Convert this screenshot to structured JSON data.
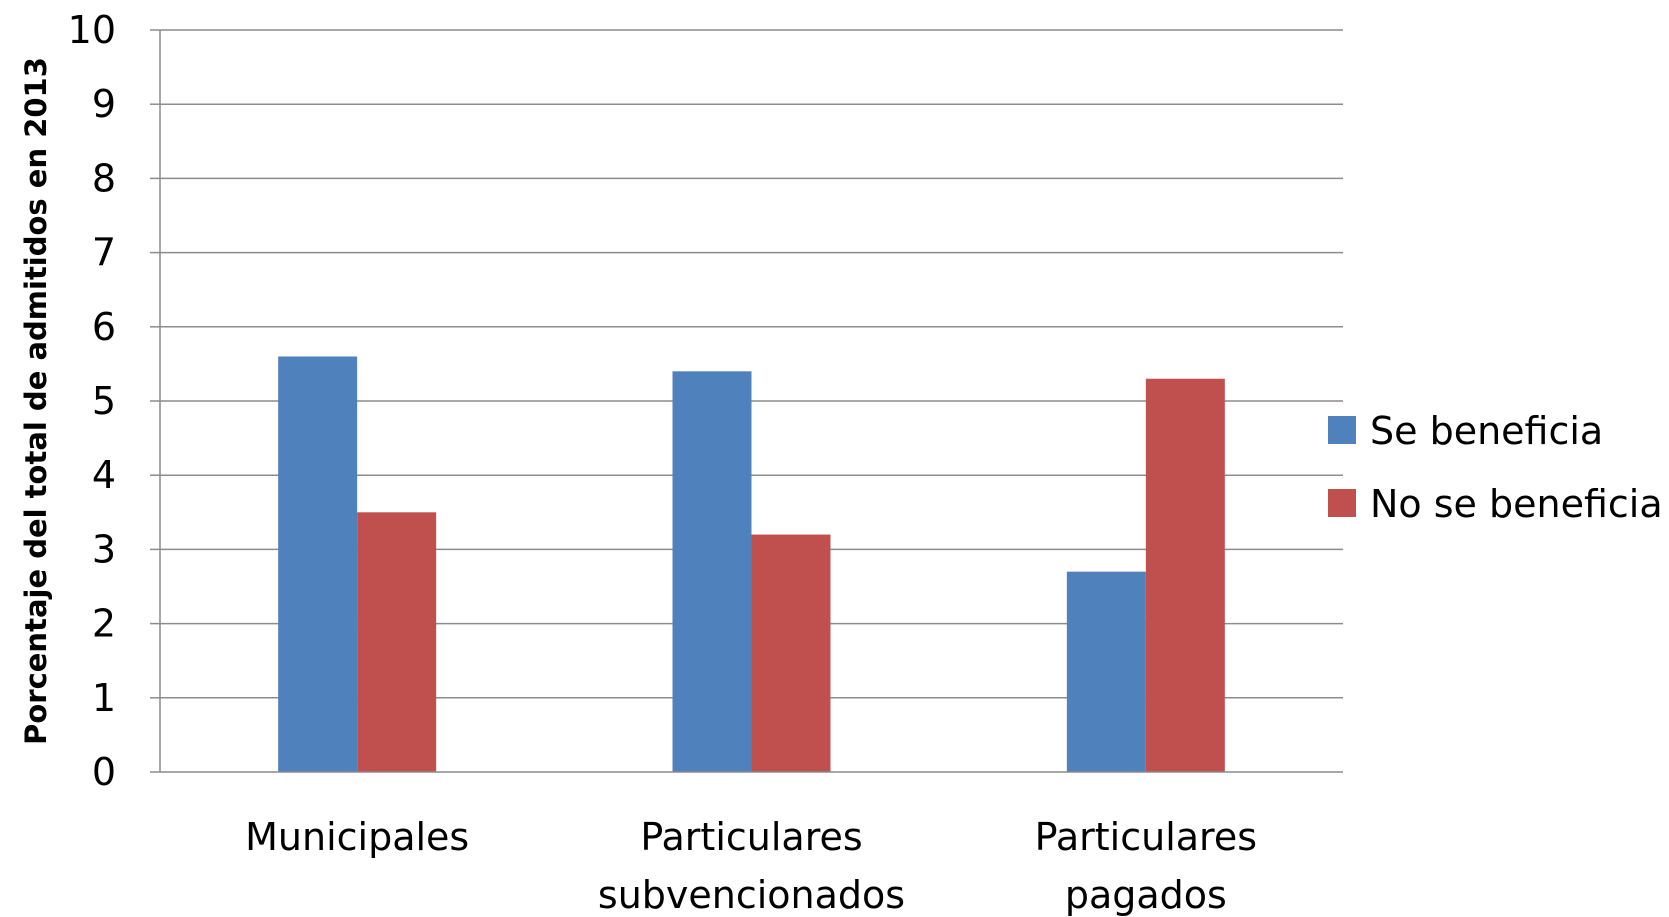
{
  "chart_data": {
    "type": "bar",
    "title": "",
    "xlabel": "",
    "ylabel": "Porcentaje del total de admitidos en 2013",
    "categories": [
      [
        "Municipales"
      ],
      [
        "Particulares",
        "subvencionados"
      ],
      [
        "Particulares",
        "pagados"
      ]
    ],
    "series": [
      {
        "name": "Se beneficia",
        "color": "#4F81BD",
        "values": [
          5.6,
          5.4,
          2.7
        ]
      },
      {
        "name": "No se beneficia",
        "color": "#C0504D",
        "values": [
          3.5,
          3.2,
          5.3
        ]
      }
    ],
    "ylim": [
      0,
      10
    ],
    "yticks": [
      0,
      1,
      2,
      3,
      4,
      5,
      6,
      7,
      8,
      9,
      10
    ],
    "grid": true,
    "legend_position": "right"
  }
}
